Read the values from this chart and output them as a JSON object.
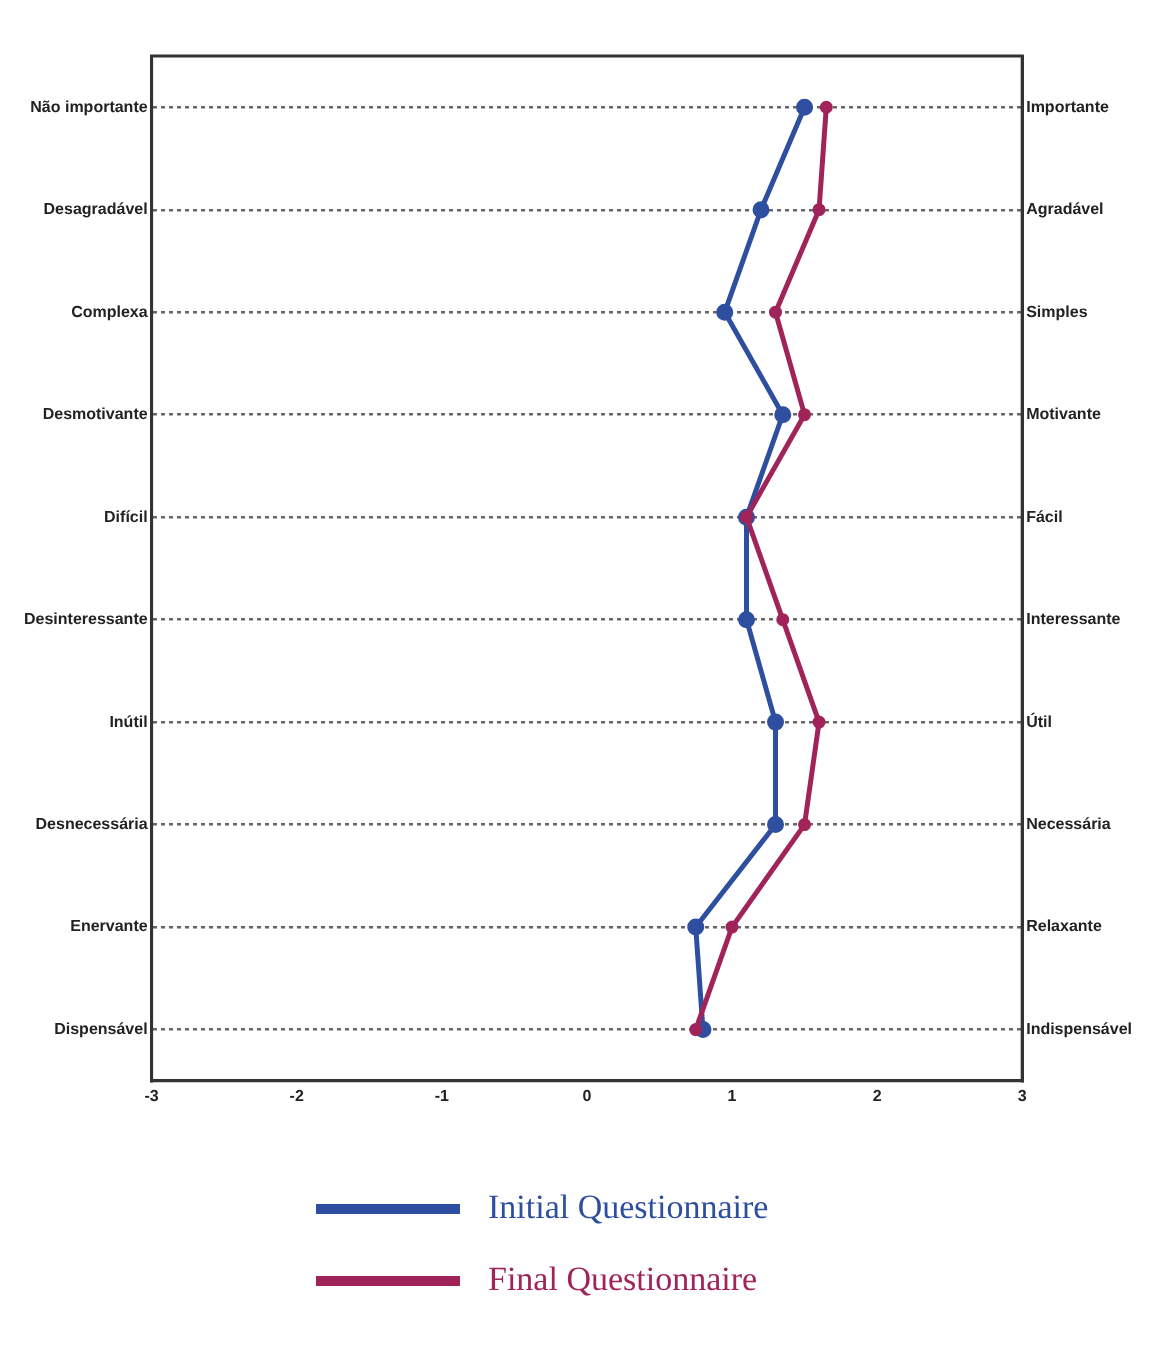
{
  "chart_data": {
    "type": "line",
    "orientation": "horizontal",
    "categories": [
      "Não importante",
      "Desagradável",
      "Complexa",
      "Desmotivante",
      "Difícil",
      "Desinteressante",
      "Inútil",
      "Desnecessária",
      "Enervante",
      "Dispensável"
    ],
    "y2_categories": [
      "Importante",
      "Agradável",
      "Simples",
      "Motivante",
      "Fácil",
      "Interessante",
      "Útil",
      "Necessária",
      "Relaxante",
      "Indispensável"
    ],
    "series": [
      {
        "name": "Initial Questionnaire",
        "color": "#2e4fa0",
        "values": [
          1.5,
          1.2,
          0.95,
          1.35,
          1.1,
          1.1,
          1.3,
          1.3,
          0.75,
          0.8
        ]
      },
      {
        "name": "Final Questionnaire",
        "color": "#a0245a",
        "values": [
          1.65,
          1.6,
          1.3,
          1.5,
          1.1,
          1.35,
          1.6,
          1.5,
          1.0,
          0.75
        ]
      }
    ],
    "xlim": [
      -3,
      3
    ],
    "xticks": [
      -3,
      -2,
      -1,
      0,
      1,
      2,
      3
    ],
    "grid": "y",
    "legend": "bottom",
    "marker": "circle",
    "line_style": "solid"
  }
}
